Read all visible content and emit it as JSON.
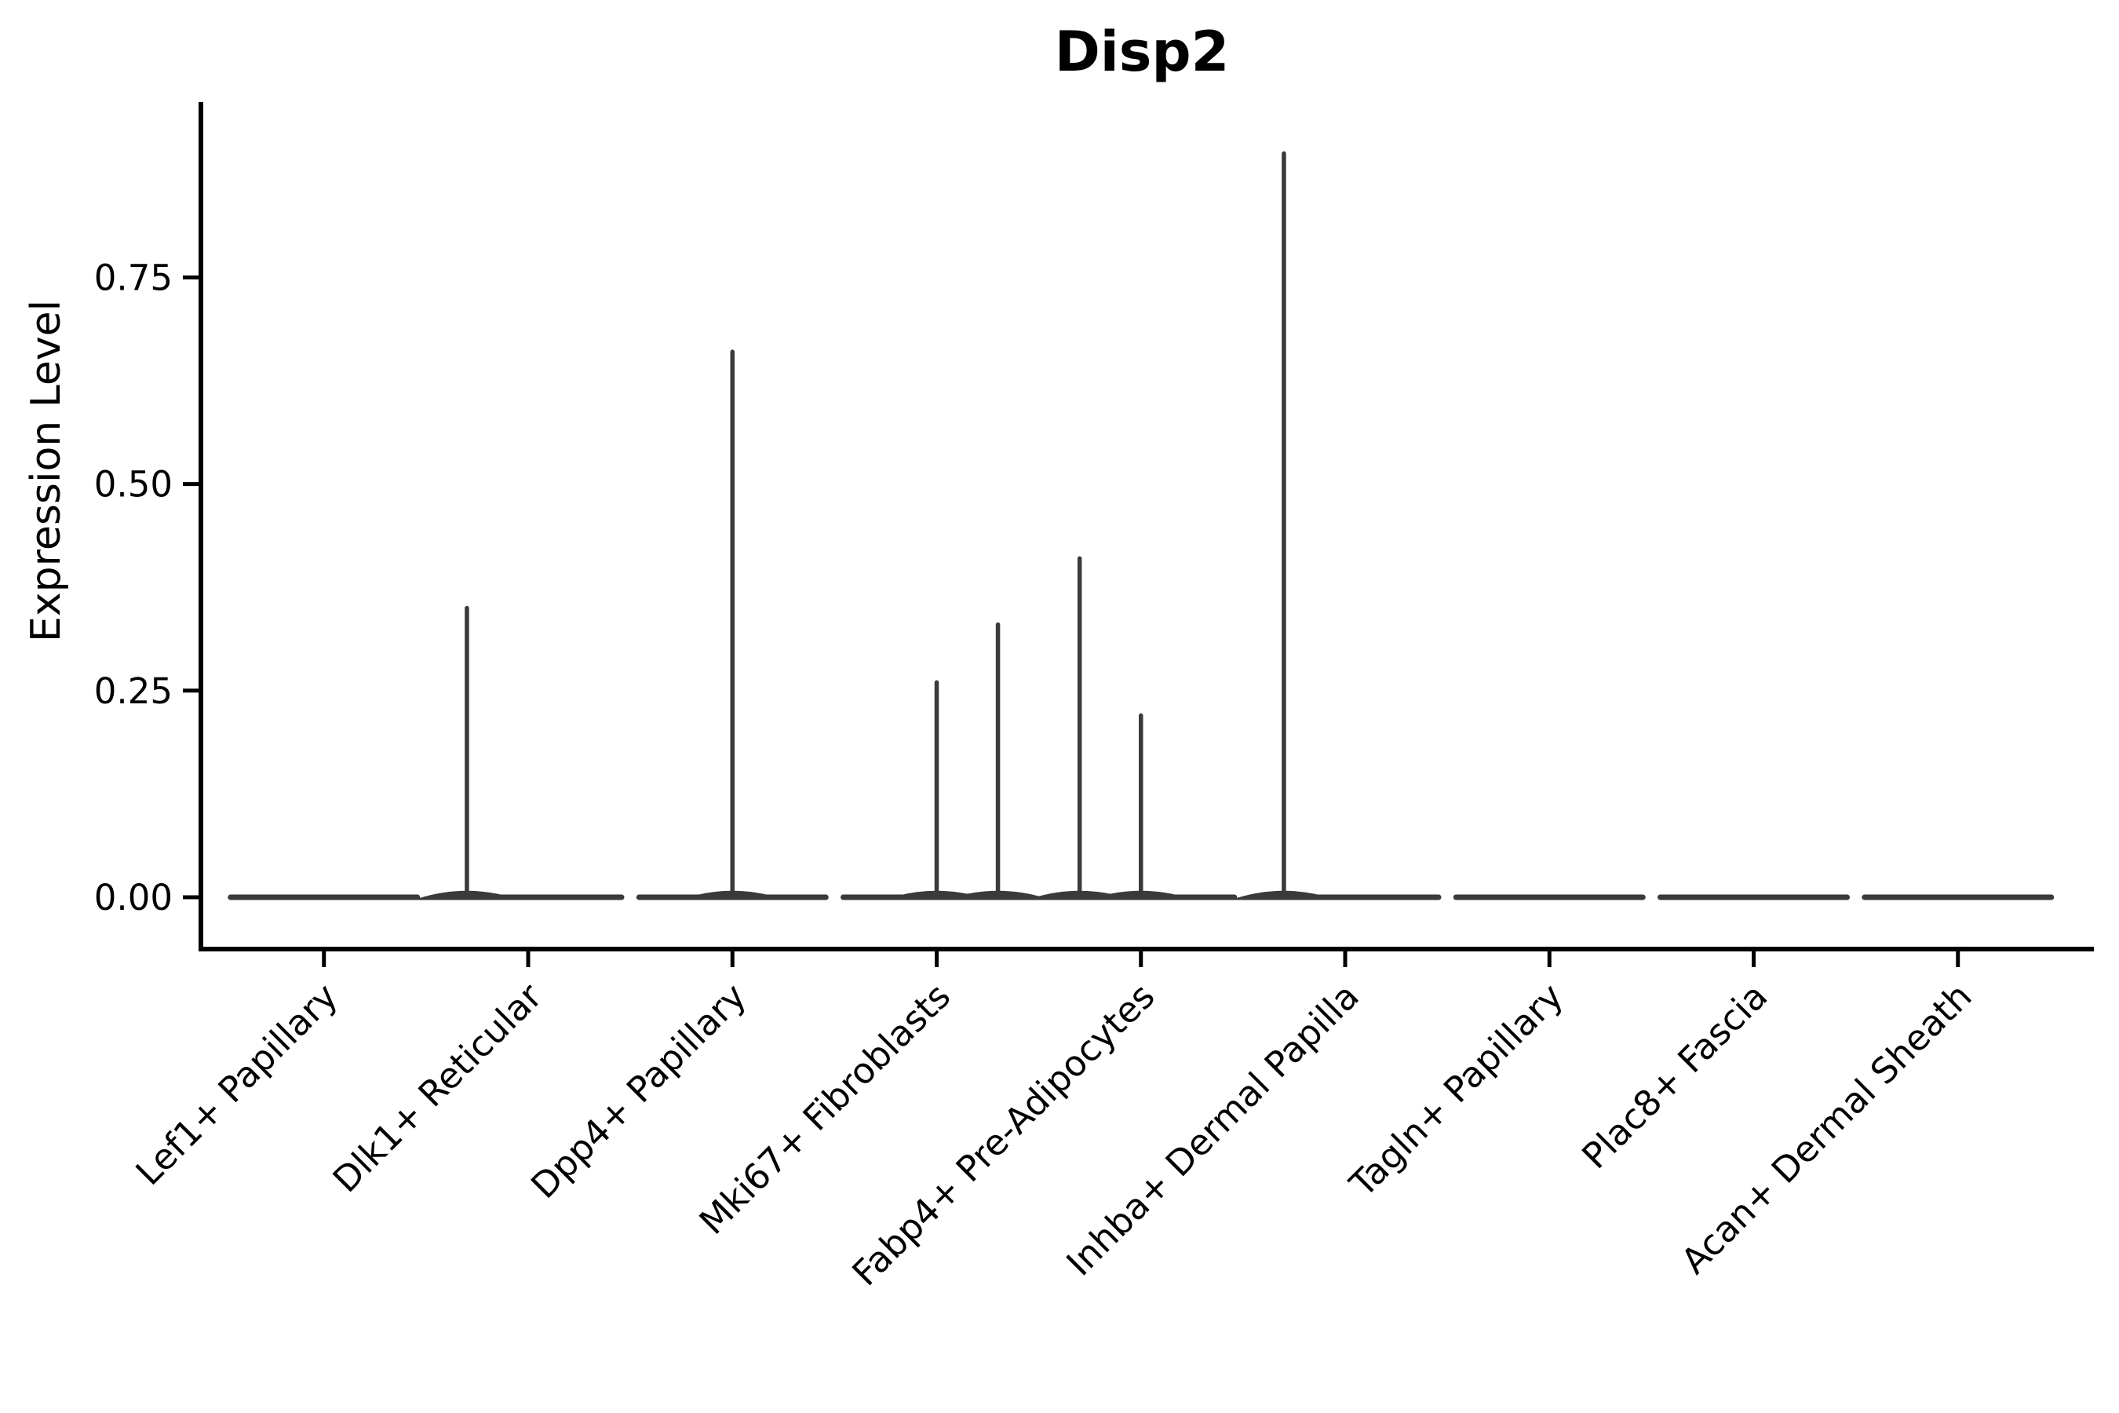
{
  "chart_data": {
    "type": "violin",
    "title": "Disp2",
    "ylabel": "Expression Level",
    "xlabel": "",
    "legend": "none",
    "grid": false,
    "y_tick_labels": [
      "0.00",
      "0.25",
      "0.50",
      "0.75"
    ],
    "y_tick_values": [
      0,
      0.25,
      0.5,
      0.75
    ],
    "ylim": [
      -0.06,
      0.96
    ],
    "categories": [
      "Lef1+ Papillary",
      "Dlk1+ Reticular",
      "Dpp4+ Papillary",
      "Mki67+ Fibroblasts",
      "Fabp4+ Pre-Adipocytes",
      "Inhba+ Dermal Papilla",
      "Tagln+ Papillary",
      "Plac8+ Fascia",
      "Acan+ Dermal Sheath"
    ],
    "violins": [
      {
        "category": "Lef1+ Papillary",
        "baseline": 0,
        "spikes": []
      },
      {
        "category": "Dlk1+ Reticular",
        "baseline": 0,
        "spikes": [
          {
            "offset": -0.3,
            "max": 0.35
          }
        ]
      },
      {
        "category": "Dpp4+ Papillary",
        "baseline": 0,
        "spikes": [
          {
            "offset": 0,
            "max": 0.66
          }
        ]
      },
      {
        "category": "Mki67+ Fibroblasts",
        "baseline": 0,
        "spikes": [
          {
            "offset": 0,
            "max": 0.26
          },
          {
            "offset": 0.3,
            "max": 0.33
          }
        ]
      },
      {
        "category": "Fabp4+ Pre-Adipocytes",
        "baseline": 0,
        "spikes": [
          {
            "offset": -0.3,
            "max": 0.41
          },
          {
            "offset": 0,
            "max": 0.22
          }
        ]
      },
      {
        "category": "Inhba+ Dermal Papilla",
        "baseline": 0,
        "spikes": [
          {
            "offset": -0.3,
            "max": 0.9
          }
        ]
      },
      {
        "category": "Tagln+ Papillary",
        "baseline": 0,
        "spikes": []
      },
      {
        "category": "Plac8+ Fascia",
        "baseline": 0,
        "spikes": []
      },
      {
        "category": "Acan+ Dermal Sheath",
        "baseline": 0,
        "spikes": []
      }
    ],
    "colors": {
      "violin_line": "#3a3a3a",
      "axis": "#000000",
      "text": "#000000",
      "background": "#ffffff"
    }
  }
}
